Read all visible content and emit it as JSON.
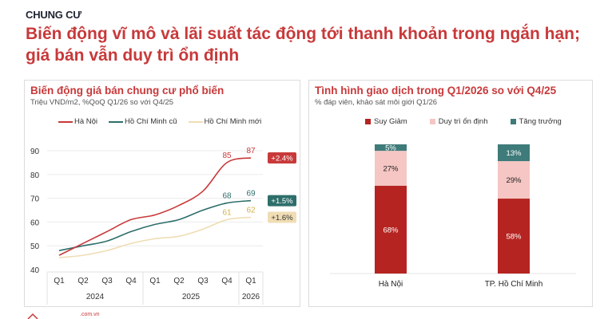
{
  "header": {
    "section_label": "CHUNG CƯ",
    "headline": "Biến động vĩ mô và lãi suất tác động tới thanh khoản trong ngắn hạn; giá bán vẫn duy trì ổn định"
  },
  "left_panel": {
    "title": "Biến động giá bán chung cư phổ biến",
    "subtitle": "Triệu VND/m2, %QoQ Q1/26 so với Q4/25"
  },
  "right_panel": {
    "title": "Tình hình giao dịch trong Q1/2026 so với Q4/25",
    "subtitle": "% đáp viên, khảo sát môi giới Q1/26"
  },
  "footer": {
    "logo_domain": ".com.vn"
  },
  "colors": {
    "accent_red": "#c8393a",
    "hanoi_line": "#c8393a",
    "hcm_old_line": "#2e6e6a",
    "hcm_new_line": "#f0ddb4",
    "decline": "#b52421",
    "stable": "#f5c6c3",
    "growth": "#3e7b7a"
  },
  "chart_data": [
    {
      "type": "line",
      "title": "Biến động giá bán chung cư phổ biến",
      "subtitle": "Triệu VND/m2, %QoQ Q1/26 so với Q4/25",
      "xlabel": "",
      "ylabel": "Triệu VND/m2",
      "x": [
        "Q1 2024",
        "Q2 2024",
        "Q3 2024",
        "Q4 2024",
        "Q1 2025",
        "Q2 2025",
        "Q3 2025",
        "Q4 2025",
        "Q1 2026"
      ],
      "x_ticks": [
        "Q1",
        "Q2",
        "Q3",
        "Q4",
        "Q1",
        "Q2",
        "Q3",
        "Q4",
        "Q1"
      ],
      "x_groups": [
        {
          "label": "2024",
          "span": 4
        },
        {
          "label": "2025",
          "span": 4
        },
        {
          "label": "2026",
          "span": 1
        }
      ],
      "y_ticks": [
        40,
        50,
        60,
        70,
        80,
        90
      ],
      "ylim": [
        40,
        90
      ],
      "grid": true,
      "legend_position": "top",
      "series": [
        {
          "name": "Hà Nội",
          "color": "#c8393a",
          "values": [
            46,
            51,
            56,
            61,
            63,
            67,
            73,
            85,
            87
          ],
          "labels": {
            "7": "85",
            "8": "87"
          },
          "change": "+2.4%"
        },
        {
          "name": "Hồ Chí Minh cũ",
          "color": "#2e6e6a",
          "values": [
            48,
            50,
            52,
            56,
            59,
            61,
            65,
            68,
            69
          ],
          "labels": {
            "7": "68",
            "8": "69"
          },
          "change": "+1.5%"
        },
        {
          "name": "Hồ Chí Minh mới",
          "color": "#f0ddb4",
          "values": [
            45,
            46,
            48,
            51,
            53,
            54,
            57,
            61,
            62
          ],
          "labels": {
            "7": "61",
            "8": "62"
          },
          "change": "+1.6%"
        }
      ]
    },
    {
      "type": "bar",
      "stacked": true,
      "title": "Tình hình giao dịch trong Q1/2026 so với Q4/25",
      "subtitle": "% đáp viên, khảo sát môi giới Q1/26",
      "categories": [
        "Hà Nội",
        "TP. Hồ Chí Minh"
      ],
      "legend_position": "top",
      "ylim": [
        0,
        100
      ],
      "series": [
        {
          "name": "Suy Giảm",
          "color": "#b52421",
          "values": [
            68,
            58
          ],
          "labels": [
            "68%",
            "58%"
          ]
        },
        {
          "name": "Duy trì ổn định",
          "color": "#f5c6c3",
          "values": [
            27,
            29
          ],
          "labels": [
            "27%",
            "29%"
          ]
        },
        {
          "name": "Tăng trưởng",
          "color": "#3e7b7a",
          "values": [
            5,
            13
          ],
          "labels": [
            "5%",
            "13%"
          ]
        }
      ]
    }
  ]
}
